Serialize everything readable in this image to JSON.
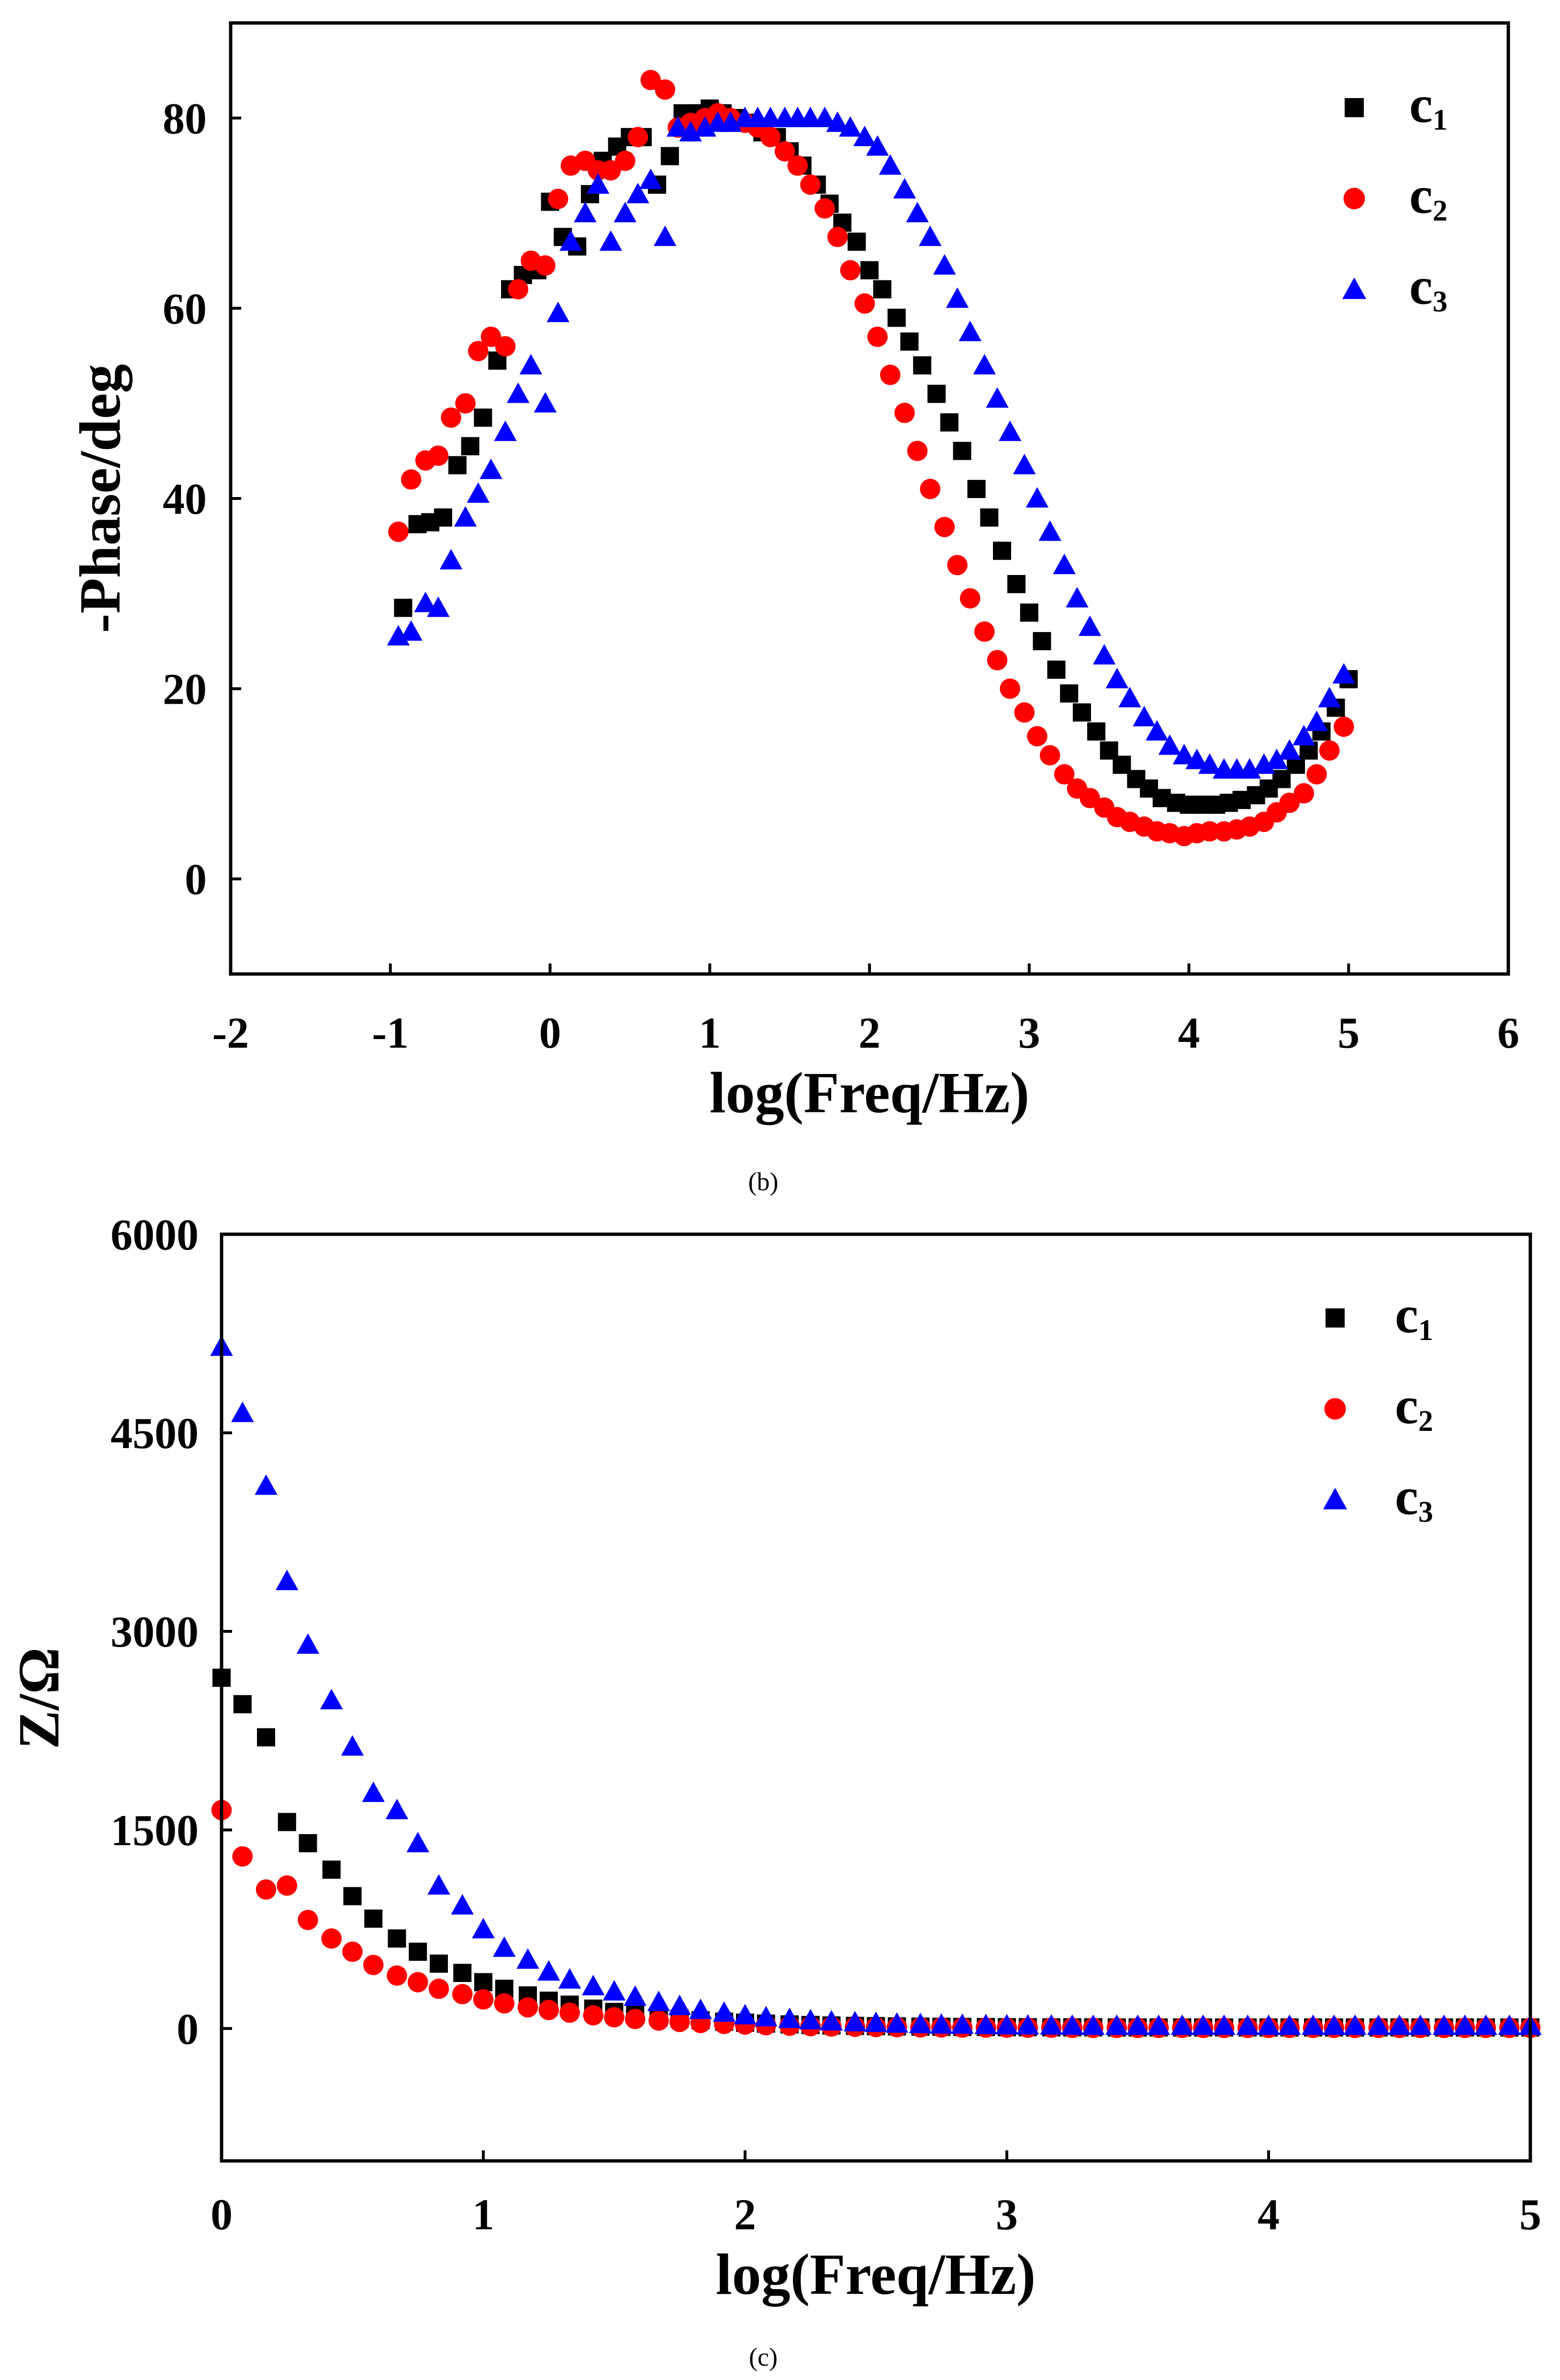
{
  "figure": {
    "panel_b_caption": "(b)",
    "panel_c_caption": "(c)"
  },
  "chart_data": [
    {
      "type": "scatter",
      "panel": "b",
      "title": "",
      "xlabel": "log(Freq/Hz)",
      "ylabel": "-Phase/deg",
      "xlim": [
        -2,
        6
      ],
      "ylim": [
        -10,
        90
      ],
      "xticks": [
        -2,
        -1,
        0,
        1,
        2,
        3,
        4,
        5,
        6
      ],
      "yticks": [
        0,
        20,
        40,
        60,
        80
      ],
      "grid": false,
      "legend_position": "top-right",
      "series": [
        {
          "name": "c",
          "sub": "1",
          "marker": "square",
          "color": "#000000",
          "x": [
            -0.92,
            -0.83,
            -0.75,
            -0.67,
            -0.58,
            -0.5,
            -0.42,
            -0.33,
            -0.25,
            -0.17,
            -0.08,
            0,
            0.08,
            0.17,
            0.25,
            0.33,
            0.42,
            0.5,
            0.58,
            0.67,
            0.75,
            0.83,
            0.92,
            1,
            1.08,
            1.17,
            1.25,
            1.33,
            1.42,
            1.5,
            1.58,
            1.67,
            1.75,
            1.83,
            1.92,
            2,
            2.08,
            2.17,
            2.25,
            2.33,
            2.42,
            2.5,
            2.58,
            2.67,
            2.75,
            2.83,
            2.92,
            3,
            3.08,
            3.17,
            3.25,
            3.33,
            3.42,
            3.5,
            3.58,
            3.67,
            3.75,
            3.83,
            3.92,
            4,
            4.08,
            4.17,
            4.25,
            4.33,
            4.42,
            4.5,
            4.58,
            4.67,
            4.75,
            4.83,
            4.92,
            5
          ],
          "y": [
            28.5,
            37.3,
            37.5,
            38,
            43.5,
            45.5,
            48.5,
            54.5,
            62,
            63.5,
            64,
            71.2,
            67.5,
            66.5,
            72,
            75.5,
            77,
            78,
            78,
            73,
            76,
            80.5,
            80.5,
            81,
            80.5,
            80,
            79.5,
            78.5,
            78,
            76.5,
            75,
            73,
            71,
            69,
            67,
            64,
            62,
            59,
            56.5,
            54,
            51,
            48,
            45,
            41,
            38,
            34.5,
            31,
            28,
            25,
            22,
            19.5,
            17.5,
            15.5,
            13.5,
            12,
            10.5,
            9.5,
            8.5,
            8,
            7.8,
            7.8,
            7.8,
            8,
            8.3,
            8.8,
            9.5,
            10.5,
            12,
            13.5,
            15.5,
            18,
            21
          ]
        },
        {
          "name": "c",
          "sub": "2",
          "marker": "circle",
          "color": "#ff0000",
          "x": [
            -0.95,
            -0.87,
            -0.78,
            -0.7,
            -0.62,
            -0.53,
            -0.45,
            -0.37,
            -0.28,
            -0.2,
            -0.12,
            -0.03,
            0.05,
            0.13,
            0.22,
            0.3,
            0.38,
            0.47,
            0.55,
            0.63,
            0.72,
            0.8,
            0.88,
            0.97,
            1.05,
            1.13,
            1.22,
            1.3,
            1.38,
            1.47,
            1.55,
            1.63,
            1.72,
            1.8,
            1.88,
            1.97,
            2.05,
            2.13,
            2.22,
            2.3,
            2.38,
            2.47,
            2.55,
            2.63,
            2.72,
            2.8,
            2.88,
            2.97,
            3.05,
            3.13,
            3.22,
            3.3,
            3.38,
            3.47,
            3.55,
            3.63,
            3.72,
            3.8,
            3.88,
            3.97,
            4.05,
            4.13,
            4.22,
            4.3,
            4.38,
            4.47,
            4.55,
            4.63,
            4.72,
            4.8,
            4.88,
            4.97
          ],
          "y": [
            36.5,
            42,
            44,
            44.5,
            48.5,
            50,
            55.5,
            57,
            56,
            62,
            65,
            64.5,
            71.5,
            75,
            75.5,
            74.5,
            74.5,
            75.5,
            78,
            84,
            83,
            79,
            79.5,
            80,
            80.5,
            80,
            79.5,
            79,
            78,
            76.5,
            75,
            73,
            70.5,
            67.5,
            64,
            60.5,
            57,
            53,
            49,
            45,
            41,
            37,
            33,
            29.5,
            26,
            23,
            20,
            17.5,
            15,
            13,
            11,
            9.5,
            8.5,
            7.5,
            6.5,
            6,
            5.5,
            5,
            4.8,
            4.5,
            4.8,
            5,
            5,
            5.2,
            5.5,
            6,
            7,
            8,
            9,
            11,
            13.5,
            16
          ]
        },
        {
          "name": "c",
          "sub": "3",
          "marker": "triangle",
          "color": "#0000ff",
          "x": [
            -0.95,
            -0.87,
            -0.78,
            -0.7,
            -0.62,
            -0.53,
            -0.45,
            -0.37,
            -0.28,
            -0.2,
            -0.12,
            -0.03,
            0.05,
            0.13,
            0.22,
            0.3,
            0.38,
            0.47,
            0.55,
            0.63,
            0.72,
            0.8,
            0.88,
            0.97,
            1.05,
            1.13,
            1.22,
            1.3,
            1.38,
            1.47,
            1.55,
            1.63,
            1.72,
            1.8,
            1.88,
            1.97,
            2.05,
            2.13,
            2.22,
            2.3,
            2.38,
            2.47,
            2.55,
            2.63,
            2.72,
            2.8,
            2.88,
            2.97,
            3.05,
            3.13,
            3.22,
            3.3,
            3.38,
            3.47,
            3.55,
            3.63,
            3.72,
            3.8,
            3.88,
            3.97,
            4.05,
            4.13,
            4.22,
            4.3,
            4.38,
            4.47,
            4.55,
            4.63,
            4.72,
            4.8,
            4.88,
            4.97
          ],
          "y": [
            25.5,
            26,
            29,
            28.5,
            33.5,
            38,
            40.5,
            43,
            47,
            51,
            54,
            50,
            59.5,
            67,
            70,
            73,
            67,
            70,
            72,
            73.5,
            67.5,
            79,
            78.5,
            79,
            79.5,
            79.5,
            80,
            80,
            80,
            80,
            80,
            80,
            80,
            79.5,
            79,
            78,
            77,
            75,
            72.5,
            70,
            67.5,
            64.5,
            61,
            57.5,
            54,
            50.5,
            47,
            43.5,
            40,
            36.5,
            33,
            29.5,
            26.5,
            23.5,
            21,
            19,
            17,
            15.5,
            14,
            13,
            12.5,
            12,
            11.5,
            11.5,
            11.5,
            12,
            12.5,
            13.5,
            15,
            16.5,
            19,
            21.5
          ]
        }
      ]
    },
    {
      "type": "scatter",
      "panel": "c",
      "title": "",
      "xlabel": "log(Freq/Hz)",
      "ylabel": "Z/Ω",
      "xlim": [
        0,
        5
      ],
      "ylim": [
        -1000,
        6000
      ],
      "xticks": [
        0,
        1,
        2,
        3,
        4,
        5
      ],
      "yticks": [
        0,
        1500,
        3000,
        4500,
        6000
      ],
      "grid": false,
      "legend_position": "top-right",
      "series": [
        {
          "name": "c",
          "sub": "1",
          "marker": "square",
          "color": "#000000",
          "x": [
            0,
            0.08,
            0.17,
            0.25,
            0.33,
            0.42,
            0.5,
            0.58,
            0.67,
            0.75,
            0.83,
            0.92,
            1,
            1.08,
            1.17,
            1.25,
            1.33,
            1.42,
            1.5,
            1.58,
            1.67,
            1.75,
            1.83,
            1.92,
            2,
            2.08,
            2.17,
            2.25,
            2.33,
            2.42,
            2.5,
            2.58,
            2.67,
            2.75,
            2.83,
            2.92,
            3,
            3.08,
            3.17,
            3.25,
            3.33,
            3.42,
            3.5,
            3.58,
            3.67,
            3.75,
            3.83,
            3.92,
            4,
            4.08,
            4.17,
            4.25,
            4.33,
            4.42,
            4.5,
            4.58,
            4.67,
            4.75,
            4.83,
            4.92,
            5
          ],
          "y": [
            2650,
            2450,
            2200,
            1560,
            1400,
            1200,
            1000,
            830,
            680,
            580,
            490,
            420,
            350,
            300,
            250,
            210,
            180,
            150,
            125,
            105,
            90,
            75,
            62,
            52,
            44,
            37,
            31,
            27,
            23,
            20,
            18,
            16,
            14,
            13,
            12,
            11,
            10,
            10,
            9,
            9,
            9,
            8,
            8,
            8,
            8,
            8,
            8,
            8,
            8,
            8,
            8,
            8,
            8,
            8,
            8,
            8,
            8,
            8,
            8,
            8,
            8
          ]
        },
        {
          "name": "c",
          "sub": "2",
          "marker": "circle",
          "color": "#ff0000",
          "x": [
            0,
            0.08,
            0.17,
            0.25,
            0.33,
            0.42,
            0.5,
            0.58,
            0.67,
            0.75,
            0.83,
            0.92,
            1,
            1.08,
            1.17,
            1.25,
            1.33,
            1.42,
            1.5,
            1.58,
            1.67,
            1.75,
            1.83,
            1.92,
            2,
            2.08,
            2.17,
            2.25,
            2.33,
            2.42,
            2.5,
            2.58,
            2.67,
            2.75,
            2.83,
            2.92,
            3,
            3.08,
            3.17,
            3.25,
            3.33,
            3.42,
            3.5,
            3.58,
            3.67,
            3.75,
            3.83,
            3.92,
            4,
            4.08,
            4.17,
            4.25,
            4.33,
            4.42,
            4.5,
            4.58,
            4.67,
            4.75,
            4.83,
            4.92,
            5
          ],
          "y": [
            1650,
            1300,
            1050,
            1080,
            820,
            680,
            580,
            480,
            400,
            350,
            300,
            260,
            220,
            190,
            160,
            140,
            120,
            100,
            85,
            72,
            60,
            50,
            42,
            35,
            30,
            25,
            21,
            18,
            15,
            13,
            11,
            10,
            9,
            8,
            7,
            7,
            6,
            6,
            6,
            5,
            5,
            5,
            5,
            5,
            5,
            5,
            5,
            5,
            5,
            5,
            5,
            5,
            5,
            5,
            5,
            5,
            5,
            5,
            5,
            5,
            5
          ]
        },
        {
          "name": "c",
          "sub": "3",
          "marker": "triangle",
          "color": "#0000ff",
          "x": [
            0,
            0.08,
            0.17,
            0.25,
            0.33,
            0.42,
            0.5,
            0.58,
            0.67,
            0.75,
            0.83,
            0.92,
            1,
            1.08,
            1.17,
            1.25,
            1.33,
            1.42,
            1.5,
            1.58,
            1.67,
            1.75,
            1.83,
            1.92,
            2,
            2.08,
            2.17,
            2.25,
            2.33,
            2.42,
            2.5,
            2.58,
            2.67,
            2.75,
            2.83,
            2.92,
            3,
            3.08,
            3.17,
            3.25,
            3.33,
            3.42,
            3.5,
            3.58,
            3.67,
            3.75,
            3.83,
            3.92,
            4,
            4.08,
            4.17,
            4.25,
            4.33,
            4.42,
            4.5,
            4.58,
            4.67,
            4.75,
            4.83,
            4.92,
            5
          ],
          "y": [
            5150,
            4650,
            4100,
            3380,
            2900,
            2480,
            2130,
            1780,
            1650,
            1400,
            1080,
            930,
            750,
            610,
            520,
            430,
            370,
            320,
            280,
            240,
            200,
            170,
            140,
            120,
            100,
            85,
            72,
            62,
            54,
            47,
            42,
            37,
            33,
            30,
            28,
            26,
            24,
            23,
            22,
            21,
            20,
            20,
            20,
            20,
            20,
            20,
            20,
            20,
            20,
            20,
            20,
            20,
            20,
            20,
            20,
            20,
            20,
            20,
            20,
            20,
            20
          ]
        }
      ]
    }
  ]
}
